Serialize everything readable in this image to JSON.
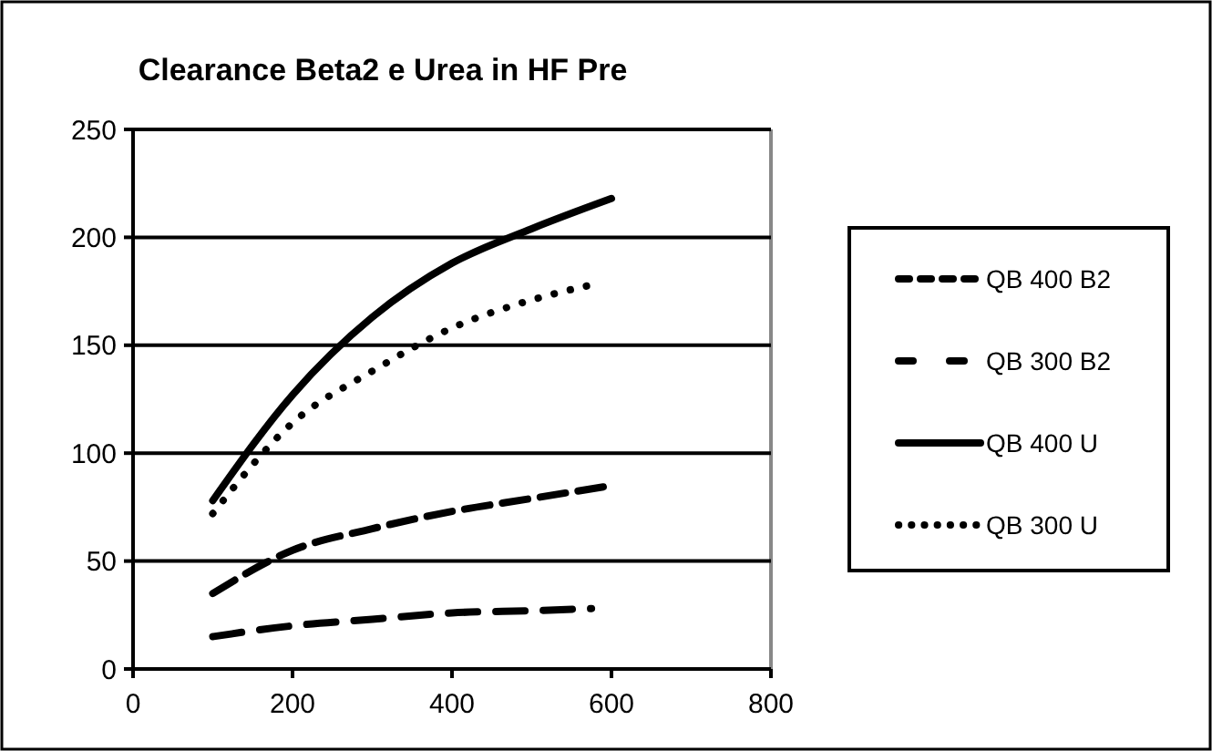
{
  "chart_data": {
    "type": "line",
    "title": "Clearance Beta2 e Urea in HF Pre",
    "xlim": [
      0,
      800
    ],
    "xticks": [
      0,
      200,
      400,
      600,
      800
    ],
    "ylim": [
      0,
      250
    ],
    "yticks": [
      0,
      50,
      100,
      150,
      200,
      250
    ],
    "grid": "y",
    "legend": "right",
    "series": [
      {
        "name": "QB 400 B2",
        "color": "#000000",
        "line_style": "dashed",
        "x": [
          100,
          200,
          300,
          400,
          500,
          600
        ],
        "values": [
          35,
          55,
          65,
          73,
          79,
          85
        ]
      },
      {
        "name": "QB 300 B2",
        "color": "#000000",
        "line_style": "dashed",
        "x": [
          100,
          200,
          300,
          400,
          500,
          575
        ],
        "values": [
          15,
          20,
          23,
          26,
          27,
          28
        ]
      },
      {
        "name": "QB 400 U",
        "color": "#000000",
        "line_style": "solid",
        "x": [
          100,
          200,
          300,
          400,
          500,
          600
        ],
        "values": [
          78,
          127,
          163,
          188,
          204,
          218
        ]
      },
      {
        "name": "QB 300 U",
        "color": "#000000",
        "line_style": "dotted",
        "x": [
          100,
          200,
          300,
          400,
          500,
          575
        ],
        "values": [
          72,
          114,
          138,
          158,
          171,
          178
        ]
      }
    ]
  }
}
